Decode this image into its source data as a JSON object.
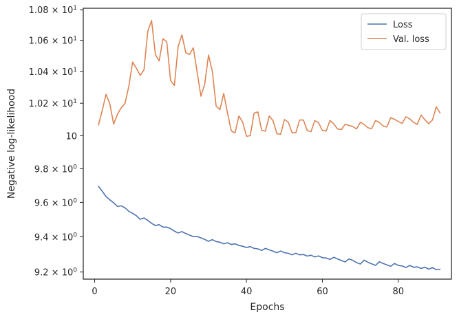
{
  "chart_data": {
    "type": "line",
    "xlabel": "Epochs",
    "ylabel": "Negative log-likelihood",
    "xlim": [
      -3,
      94
    ],
    "ylim": [
      9.16,
      10.81
    ],
    "y_scale": "log",
    "grid": false,
    "legend_position": "top-right",
    "x_ticks": [
      {
        "value": 0,
        "label": "0"
      },
      {
        "value": 20,
        "label": "20"
      },
      {
        "value": 40,
        "label": "40"
      },
      {
        "value": 60,
        "label": "60"
      },
      {
        "value": 80,
        "label": "80"
      }
    ],
    "y_ticks": [
      {
        "value": 9.2,
        "mantissa": "9.2",
        "base": "10",
        "exp": "0"
      },
      {
        "value": 9.4,
        "mantissa": "9.4",
        "base": "10",
        "exp": "0"
      },
      {
        "value": 9.6,
        "mantissa": "9.6",
        "base": "10",
        "exp": "0"
      },
      {
        "value": 9.8,
        "mantissa": "9.8",
        "base": "10",
        "exp": "0"
      },
      {
        "value": 10.0,
        "mantissa": "",
        "base": "10",
        "exp": "1"
      },
      {
        "value": 10.2,
        "mantissa": "1.02",
        "base": "10",
        "exp": "1"
      },
      {
        "value": 10.4,
        "mantissa": "1.04",
        "base": "10",
        "exp": "1"
      },
      {
        "value": 10.6,
        "mantissa": "1.06",
        "base": "10",
        "exp": "1"
      },
      {
        "value": 10.8,
        "mantissa": "1.08",
        "base": "10",
        "exp": "1"
      }
    ],
    "x": [
      1,
      2,
      3,
      4,
      5,
      6,
      7,
      8,
      9,
      10,
      11,
      12,
      13,
      14,
      15,
      16,
      17,
      18,
      19,
      20,
      21,
      22,
      23,
      24,
      25,
      26,
      27,
      28,
      29,
      30,
      31,
      32,
      33,
      34,
      35,
      36,
      37,
      38,
      39,
      40,
      41,
      42,
      43,
      44,
      45,
      46,
      47,
      48,
      49,
      50,
      51,
      52,
      53,
      54,
      55,
      56,
      57,
      58,
      59,
      60,
      61,
      62,
      63,
      64,
      65,
      66,
      67,
      68,
      69,
      70,
      71,
      72,
      73,
      74,
      75,
      76,
      77,
      78,
      79,
      80,
      81,
      82,
      83,
      84,
      85,
      86,
      87,
      88,
      89,
      90,
      91
    ],
    "series": [
      {
        "name": "Loss",
        "color": "#4c72b0",
        "values": [
          9.695,
          9.666,
          9.634,
          9.615,
          9.598,
          9.576,
          9.58,
          9.568,
          9.548,
          9.536,
          9.522,
          9.501,
          9.509,
          9.495,
          9.478,
          9.465,
          9.47,
          9.456,
          9.456,
          9.447,
          9.433,
          9.422,
          9.43,
          9.419,
          9.41,
          9.401,
          9.402,
          9.394,
          9.385,
          9.374,
          9.384,
          9.373,
          9.369,
          9.36,
          9.366,
          9.356,
          9.36,
          9.351,
          9.346,
          9.339,
          9.344,
          9.334,
          9.331,
          9.322,
          9.334,
          9.325,
          9.318,
          9.309,
          9.319,
          9.309,
          9.306,
          9.297,
          9.306,
          9.297,
          9.299,
          9.29,
          9.295,
          9.285,
          9.291,
          9.281,
          9.279,
          9.271,
          9.283,
          9.274,
          9.265,
          9.257,
          9.274,
          9.266,
          9.253,
          9.245,
          9.267,
          9.255,
          9.246,
          9.237,
          9.258,
          9.248,
          9.24,
          9.232,
          9.248,
          9.237,
          9.234,
          9.225,
          9.237,
          9.227,
          9.229,
          9.22,
          9.227,
          9.216,
          9.225,
          9.213,
          9.216
        ]
      },
      {
        "name": "Val. loss",
        "color": "#dd8452",
        "values": [
          10.065,
          10.155,
          10.256,
          10.196,
          10.071,
          10.131,
          10.172,
          10.199,
          10.306,
          10.46,
          10.42,
          10.375,
          10.41,
          10.66,
          10.729,
          10.508,
          10.467,
          10.61,
          10.59,
          10.344,
          10.311,
          10.56,
          10.636,
          10.52,
          10.509,
          10.552,
          10.396,
          10.244,
          10.32,
          10.505,
          10.401,
          10.183,
          10.16,
          10.262,
          10.14,
          10.029,
          10.017,
          10.121,
          10.083,
          9.996,
          10.0,
          10.138,
          10.146,
          10.033,
          10.027,
          10.121,
          10.092,
          10.012,
          10.008,
          10.099,
          10.083,
          10.019,
          10.017,
          10.096,
          10.096,
          10.031,
          10.024,
          10.093,
          10.079,
          10.032,
          10.028,
          10.093,
          10.072,
          10.041,
          10.037,
          10.07,
          10.063,
          10.056,
          10.041,
          10.082,
          10.069,
          10.048,
          10.043,
          10.093,
          10.081,
          10.059,
          10.053,
          10.111,
          10.1,
          10.087,
          10.075,
          10.116,
          10.103,
          10.082,
          10.069,
          10.127,
          10.098,
          10.073,
          10.096,
          10.178,
          10.14
        ]
      }
    ]
  }
}
